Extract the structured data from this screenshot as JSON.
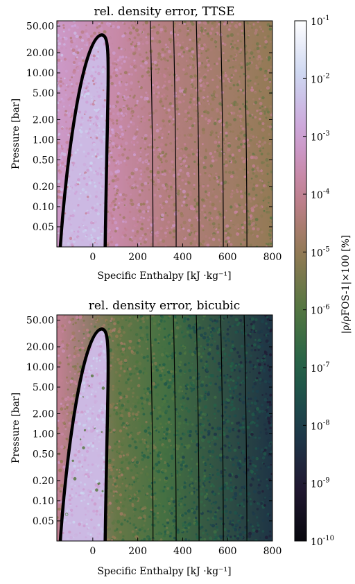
{
  "chart_data": [
    {
      "type": "heatmap",
      "title": "rel. density error, TTSE",
      "xlabel": "Specific Enthalpy [kJ ·kg⁻¹]",
      "ylabel": "Pressure [bar]",
      "x_ticks": [
        0,
        200,
        400,
        600,
        800
      ],
      "x_tick_labels": [
        "0",
        "200",
        "400",
        "600",
        "800"
      ],
      "xlim": [
        -160,
        800
      ],
      "y_scale": "log",
      "y_ticks": [
        0.05,
        0.1,
        0.2,
        0.5,
        1,
        2,
        5,
        10,
        20,
        50
      ],
      "y_tick_labels": [
        "0.05",
        "0.10",
        "0.20",
        "0.50",
        "1.00",
        "2.00",
        "5.00",
        "10.00",
        "20.00",
        "50.00"
      ],
      "ylim": [
        0.025,
        60
      ],
      "dome": {
        "left_base_h": -145,
        "right_base_h": 55,
        "critical_h": 40,
        "critical_p": 37
      },
      "isotherm_h": [
        265,
        368,
        470,
        578,
        683
      ],
      "error_levels_log10": {
        "inside_dome": -2.5,
        "near_left": -3.2,
        "vapor_low_h": -4.3,
        "vapor_high_h": -5.0
      },
      "grid": false
    },
    {
      "type": "heatmap",
      "title": "rel. density error, bicubic",
      "xlabel": "Specific Enthalpy [kJ ·kg⁻¹]",
      "ylabel": "Pressure [bar]",
      "x_ticks": [
        0,
        200,
        400,
        600,
        800
      ],
      "x_tick_labels": [
        "0",
        "200",
        "400",
        "600",
        "800"
      ],
      "xlim": [
        -160,
        800
      ],
      "y_scale": "log",
      "y_ticks": [
        0.05,
        0.1,
        0.2,
        0.5,
        1,
        2,
        5,
        10,
        20,
        50
      ],
      "y_tick_labels": [
        "0.05",
        "0.10",
        "0.20",
        "0.50",
        "1.00",
        "2.00",
        "5.00",
        "10.00",
        "20.00",
        "50.00"
      ],
      "ylim": [
        0.025,
        60
      ],
      "dome": {
        "left_base_h": -145,
        "right_base_h": 55,
        "critical_h": 40,
        "critical_p": 37
      },
      "isotherm_h": [
        265,
        368,
        470,
        578,
        683
      ],
      "error_levels_log10": {
        "inside_dome": -2.5,
        "near_left": -4.0,
        "vapor_low_h": -6.3,
        "vapor_high_h": -8.3
      },
      "grid": false
    }
  ],
  "colorbar": {
    "label": "|ρ/ρFOS-1|×100 [%]",
    "scale": "log",
    "range": [
      -10,
      -1
    ],
    "tick_exponents": [
      -1,
      -2,
      -3,
      -4,
      -5,
      -6,
      -7,
      -8,
      -9,
      -10
    ],
    "tick_base": "10",
    "tick_labels": [
      "-1",
      "-2",
      "-3",
      "-4",
      "-5",
      "-6",
      "-7",
      "-8",
      "-9",
      "-10"
    ],
    "colormap": "cubehelix"
  }
}
